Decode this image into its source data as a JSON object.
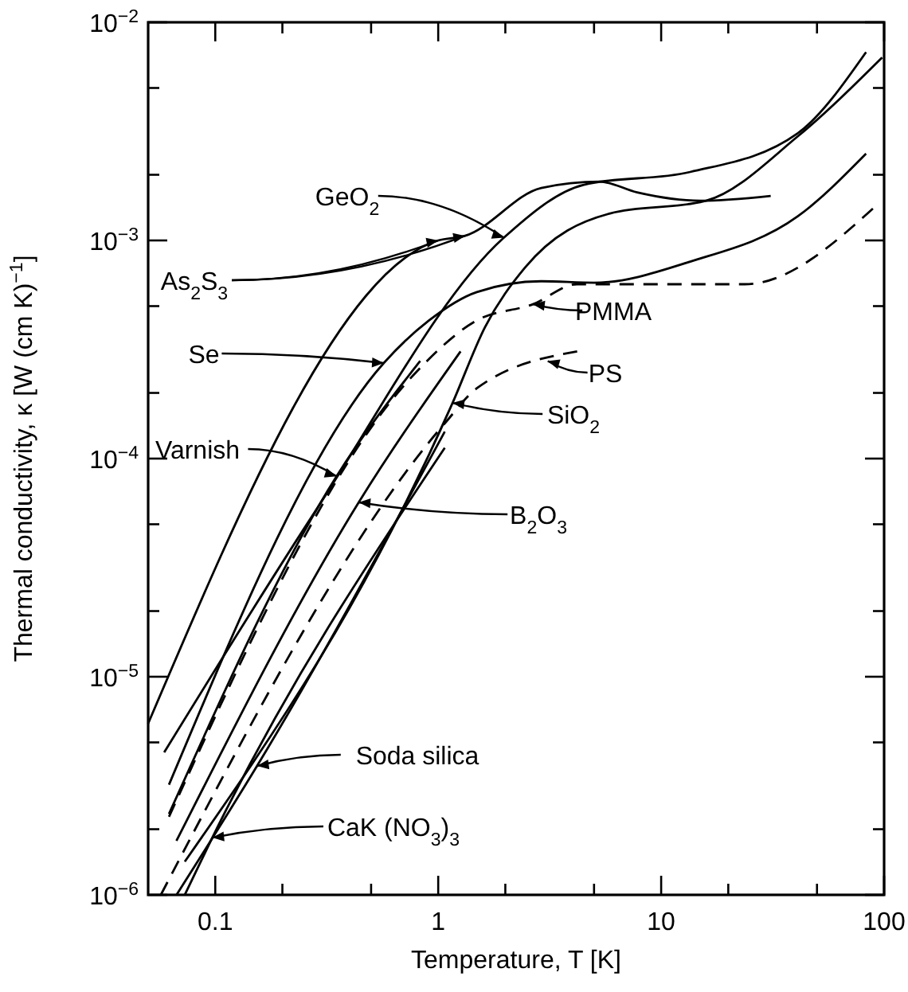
{
  "chart_data": {
    "type": "line",
    "xlabel": "Temperature, T [K]",
    "ylabel": "Thermal conductivity, κ [W (cm K)$^{−1}$]",
    "log": "xy",
    "grid": false,
    "marker": "none",
    "xlim": [
      0.05,
      100
    ],
    "xticks": [
      {
        "value": 0.1,
        "label": "0.1"
      },
      {
        "value": 0.2,
        "label": null
      },
      {
        "value": 0.5,
        "label": null
      },
      {
        "value": 1,
        "label": "1"
      },
      {
        "value": 2,
        "label": null
      },
      {
        "value": 5,
        "label": null
      },
      {
        "value": 10,
        "label": "10"
      },
      {
        "value": 20,
        "label": null
      },
      {
        "value": 50,
        "label": null
      },
      {
        "value": 100,
        "label": "100"
      }
    ],
    "ylim": [
      1e-06,
      0.01
    ],
    "yticks": [
      {
        "value": 1e-06,
        "label": "10$^{−6}$"
      },
      {
        "value": 2e-06,
        "label": null
      },
      {
        "value": 5e-06,
        "label": null
      },
      {
        "value": 1e-05,
        "label": "10$^{−5}$"
      },
      {
        "value": 2e-05,
        "label": null
      },
      {
        "value": 5e-05,
        "label": null
      },
      {
        "value": 0.0001,
        "label": "10$^{−4}$"
      },
      {
        "value": 0.0002,
        "label": null
      },
      {
        "value": 0.0005,
        "label": null
      },
      {
        "value": 0.001,
        "label": "10$^{−3}$"
      },
      {
        "value": 0.002,
        "label": null
      },
      {
        "value": 0.005,
        "label": null
      },
      {
        "value": 0.01,
        "label": "10$^{−2}$"
      }
    ],
    "series": [
      {
        "color": "#000000",
        "line_style": "solid",
        "x": [
          0.05,
          1,
          1.32,
          2.9,
          5.3,
          7.8,
          15,
          31
        ],
        "values": [
          6.1e-06,
          0.001,
          0.00105,
          0.00174,
          0.00186,
          0.00166,
          0.00152,
          0.0016
        ]
      },
      {
        "color": "#000000",
        "line_style": "solid",
        "x": [
          0.059,
          0.28,
          1.97,
          4.5,
          13.5,
          41,
          83
        ],
        "values": [
          4.5e-06,
          5.7e-05,
          0.00103,
          0.0018,
          0.00206,
          0.0031,
          0.0073
        ]
      },
      {
        "color": "#000000",
        "line_style": "solid",
        "x": [
          0.062,
          0.57,
          0.91,
          1.49,
          2.9,
          5,
          13.5,
          41,
          83
        ],
        "values": [
          3.2e-06,
          0.000274,
          0.00043,
          0.00058,
          0.00065,
          0.00064,
          0.0008,
          0.00129,
          0.0025
        ]
      },
      {
        "color": "#000000",
        "line_style": "solid",
        "x": [
          0.062,
          0.35,
          0.83
        ],
        "values": [
          2.35e-06,
          8.3e-05,
          0.00028
        ]
      },
      {
        "color": "#000000",
        "line_style": "solid",
        "x": [
          0.067,
          0.44,
          1.26
        ],
        "values": [
          1.77e-06,
          6.3e-05,
          0.00031
        ]
      },
      {
        "color": "#000000",
        "line_style": "solid",
        "x": [
          0.073,
          1.16,
          1.62,
          2.45,
          5.9,
          15.9,
          41,
          98
        ],
        "values": [
          1.42e-06,
          0.00018,
          0.0004,
          0.00075,
          0.00133,
          0.00152,
          0.003,
          0.0069
        ]
      },
      {
        "color": "#000000",
        "line_style": "dashed",
        "x": [
          0.062,
          0.77,
          1.49,
          2.66,
          4.2,
          23.7,
          94
        ],
        "values": [
          2.28e-06,
          0.00024,
          0.00043,
          0.00051,
          0.00063,
          0.00063,
          0.00147
        ]
      },
      {
        "color": "#000000",
        "line_style": "dashed",
        "x": [
          0.057,
          1.07,
          1.49,
          4.2
        ],
        "values": [
          1e-06,
          0.000145,
          0.00021,
          0.00031
        ]
      },
      {
        "color": "#000000",
        "line_style": "solid",
        "x": [
          0.067,
          0.154,
          1.07
        ],
        "values": [
          1e-06,
          3.9e-06,
          0.000133
        ]
      },
      {
        "color": "#000000",
        "line_style": "solid",
        "x": [
          0.073,
          0.097,
          1.07
        ],
        "values": [
          1e-06,
          1.83e-06,
          0.000112
        ]
      }
    ],
    "annotations": [
      {
        "text": "As$_{2}$S$_{3}$",
        "x": 1,
        "y": 0.001
      },
      {
        "text": "GeO$_{2}$",
        "x": 1.97,
        "y": 0.00103
      },
      {
        "text": "Se",
        "x": 0.57,
        "y": 0.000274
      },
      {
        "text": "Varnish",
        "x": 0.35,
        "y": 8.3e-05
      },
      {
        "text": "B$_{2}$O$_{3}$",
        "x": 0.44,
        "y": 6.3e-05
      },
      {
        "text": "SiO$_{2}$",
        "x": 1.16,
        "y": 0.00018
      },
      {
        "text": "PMMA",
        "x": 2.66,
        "y": 0.00051
      },
      {
        "text": "PS",
        "x": 3.1,
        "y": 0.00028
      },
      {
        "text": "Soda silica",
        "x": 0.154,
        "y": 3.9e-06
      },
      {
        "text": "CaK (NO$_{3}$)$_{3}$",
        "x": 0.097,
        "y": 1.83e-06
      }
    ]
  }
}
